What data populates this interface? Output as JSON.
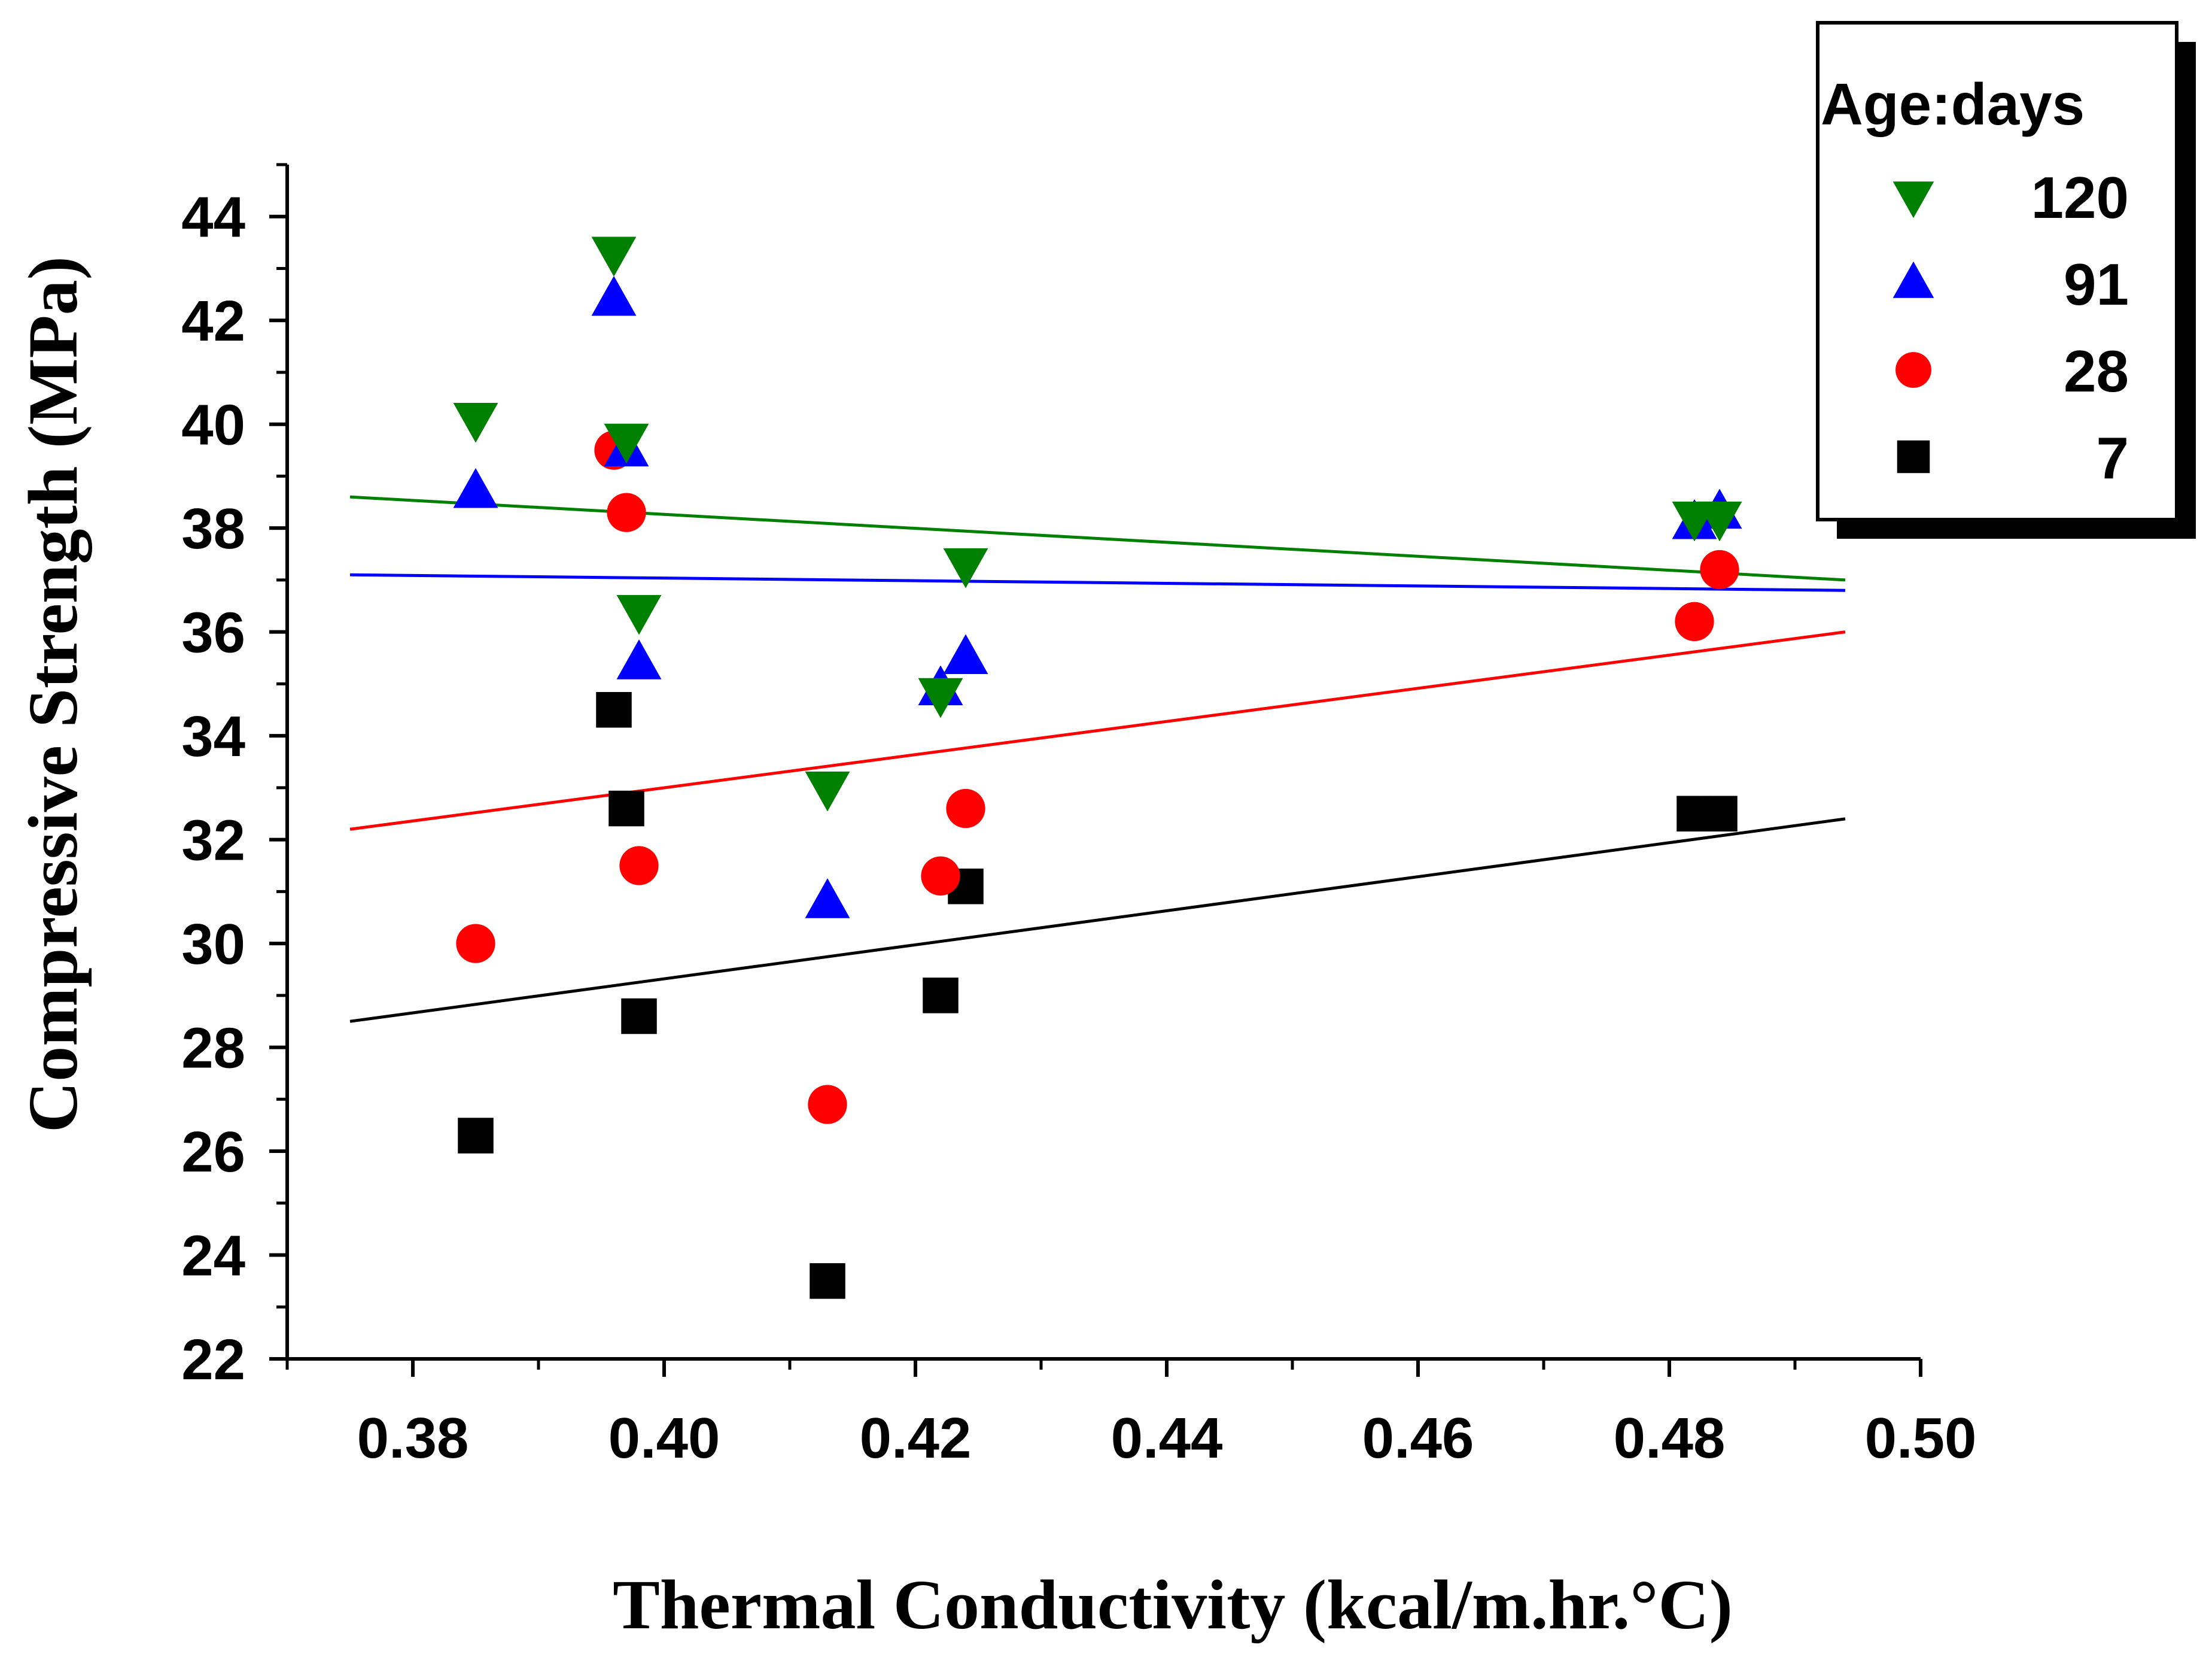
{
  "chart_data": {
    "type": "scatter",
    "title": "",
    "xlabel": "Thermal Conductivity (kcal/m.hr.°C)",
    "ylabel": "Compressive Strength (MPa)",
    "xlim": [
      0.37,
      0.5
    ],
    "ylim": [
      22,
      45
    ],
    "xticks": [
      0.38,
      0.4,
      0.42,
      0.44,
      0.46,
      0.48,
      0.5
    ],
    "xtick_labels": [
      "0.38",
      "0.40",
      "0.42",
      "0.44",
      "0.46",
      "0.48",
      "0.50"
    ],
    "yticks": [
      22,
      24,
      26,
      28,
      30,
      32,
      34,
      36,
      38,
      40,
      42,
      44
    ],
    "ytick_labels": [
      "22",
      "24",
      "26",
      "28",
      "30",
      "32",
      "34",
      "36",
      "38",
      "40",
      "42",
      "44"
    ],
    "grid": false,
    "legend": {
      "title": "Age:days",
      "placement": "top-right outside plot",
      "entries": [
        {
          "label": "120",
          "marker": "triangle-down",
          "color": "#008000"
        },
        {
          "label": "91",
          "marker": "triangle-up",
          "color": "#0000ff"
        },
        {
          "label": "28",
          "marker": "circle",
          "color": "#ff0000"
        },
        {
          "label": "7",
          "marker": "square",
          "color": "#000000"
        }
      ]
    },
    "series": [
      {
        "name": "120",
        "marker": "triangle-down",
        "color": "#008000",
        "x": [
          0.385,
          0.396,
          0.397,
          0.398,
          0.413,
          0.422,
          0.424,
          0.482,
          0.484
        ],
        "y": [
          40.1,
          43.3,
          39.7,
          36.4,
          33.0,
          34.8,
          37.3,
          38.2,
          38.2
        ],
        "fit": {
          "x": [
            0.375,
            0.494
          ],
          "y": [
            38.6,
            37.0
          ]
        }
      },
      {
        "name": "91",
        "marker": "triangle-up",
        "color": "#0000ff",
        "x": [
          0.385,
          0.396,
          0.397,
          0.398,
          0.413,
          0.422,
          0.424,
          0.482,
          0.484
        ],
        "y": [
          38.7,
          42.4,
          39.5,
          35.4,
          30.8,
          34.9,
          35.5,
          38.1,
          38.3
        ],
        "fit": {
          "x": [
            0.375,
            0.494
          ],
          "y": [
            37.1,
            36.8
          ]
        }
      },
      {
        "name": "28",
        "marker": "circle",
        "color": "#ff0000",
        "x": [
          0.385,
          0.396,
          0.397,
          0.398,
          0.413,
          0.422,
          0.424,
          0.482,
          0.484
        ],
        "y": [
          30.0,
          39.5,
          38.3,
          31.5,
          26.9,
          31.3,
          32.6,
          36.2,
          37.2
        ],
        "fit": {
          "x": [
            0.375,
            0.494
          ],
          "y": [
            32.2,
            36.0
          ]
        }
      },
      {
        "name": "7",
        "marker": "square",
        "color": "#000000",
        "x": [
          0.385,
          0.396,
          0.397,
          0.398,
          0.413,
          0.422,
          0.424,
          0.482,
          0.484
        ],
        "y": [
          26.3,
          34.5,
          32.6,
          28.6,
          23.5,
          29.0,
          31.1,
          32.5,
          32.5
        ],
        "fit": {
          "x": [
            0.375,
            0.494
          ],
          "y": [
            28.5,
            32.4
          ]
        }
      }
    ]
  }
}
